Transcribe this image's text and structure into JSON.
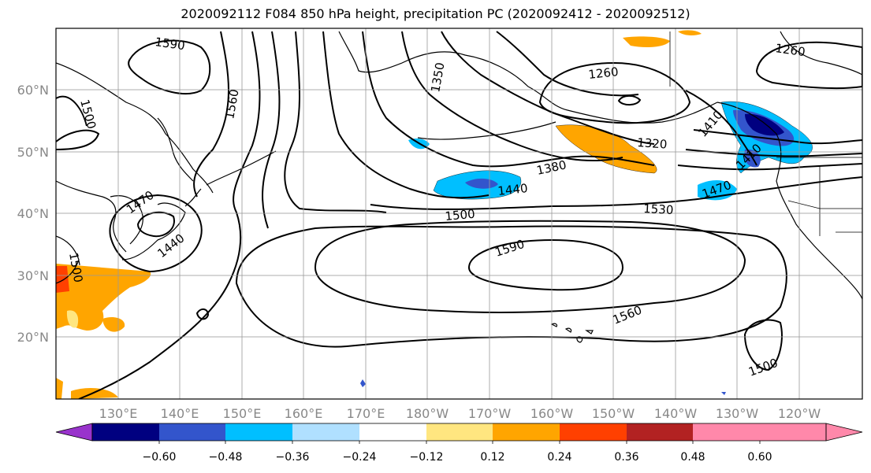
{
  "title": "2020092112 F084 850 hPa height, precipitation PC (2020092412 - 2020092512)",
  "lat_labels": [
    "60°N",
    "50°N",
    "40°N",
    "30°N",
    "20°N"
  ],
  "lon_labels": [
    "130°E",
    "140°E",
    "150°E",
    "160°E",
    "170°E",
    "180°W",
    "170°W",
    "160°W",
    "150°W",
    "140°W",
    "130°W",
    "120°W"
  ],
  "contour_labels": [
    "1590",
    "1500",
    "1560",
    "1350",
    "1260",
    "1260",
    "1320",
    "1380",
    "1440",
    "1500",
    "1530",
    "1590",
    "1560",
    "1500",
    "1470",
    "1440",
    "1500",
    "1470",
    "1410",
    "1410"
  ],
  "colorbar": {
    "tick_labels": [
      "−0.60",
      "−0.48",
      "−0.36",
      "−0.24",
      "−0.12",
      "0.12",
      "0.24",
      "0.36",
      "0.48",
      "0.60"
    ],
    "colors": [
      "#9933cc",
      "#000080",
      "#3355cc",
      "#00bfff",
      "#b0e0ff",
      "#ffffff",
      "#ffe680",
      "#ffa500",
      "#ff4000",
      "#b22222",
      "#ff88aa",
      "#ff88aa"
    ]
  },
  "colors": {
    "positive_anomaly": "#ffa500",
    "weak_positive": "#ffe680",
    "strong_positive": "#ff4000",
    "negative_anomaly": "#00bfff",
    "moderate_negative": "#3355cc",
    "strong_negative": "#000080"
  }
}
